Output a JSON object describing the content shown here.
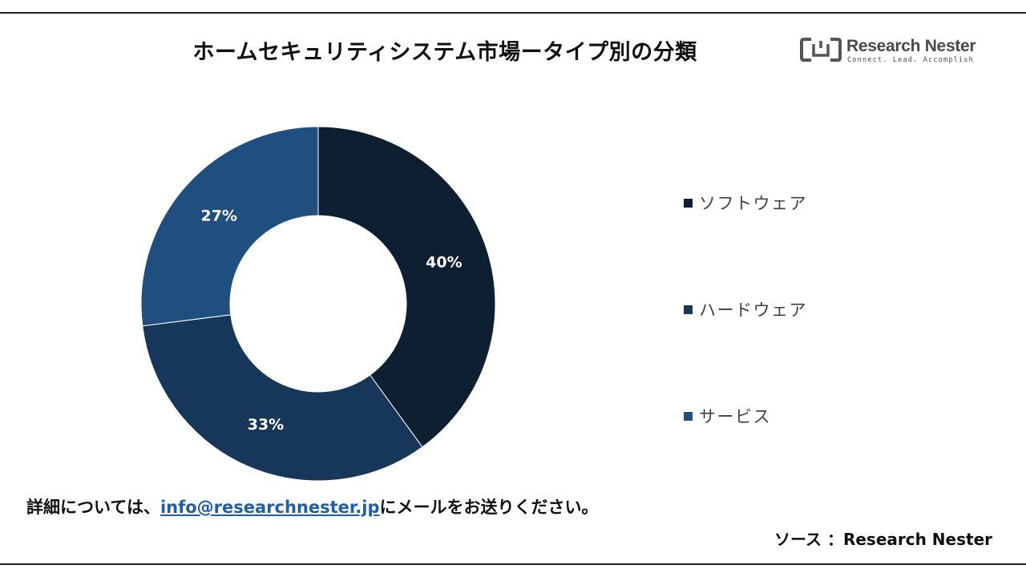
{
  "title": "ホームセキュリティシステム市場ータイプ別の分類",
  "logo": {
    "name": "Research Nester",
    "tagline": "Connect. Lead. Accomplish"
  },
  "chart_data": {
    "type": "pie",
    "donut": true,
    "labels": [
      "ソフトウェア",
      "ハードウェア",
      "サービス"
    ],
    "values": [
      40,
      33,
      27
    ],
    "value_labels": [
      "40%",
      "33%",
      "27%"
    ],
    "colors": [
      "#0d1f30",
      "#17375a",
      "#1f4f7e"
    ],
    "legend_position": "right"
  },
  "footer": {
    "prefix": "詳細については、",
    "email": "info@researchnester.jp",
    "suffix": "にメールをお送りください。"
  },
  "source": "ソース ：Research Nester"
}
